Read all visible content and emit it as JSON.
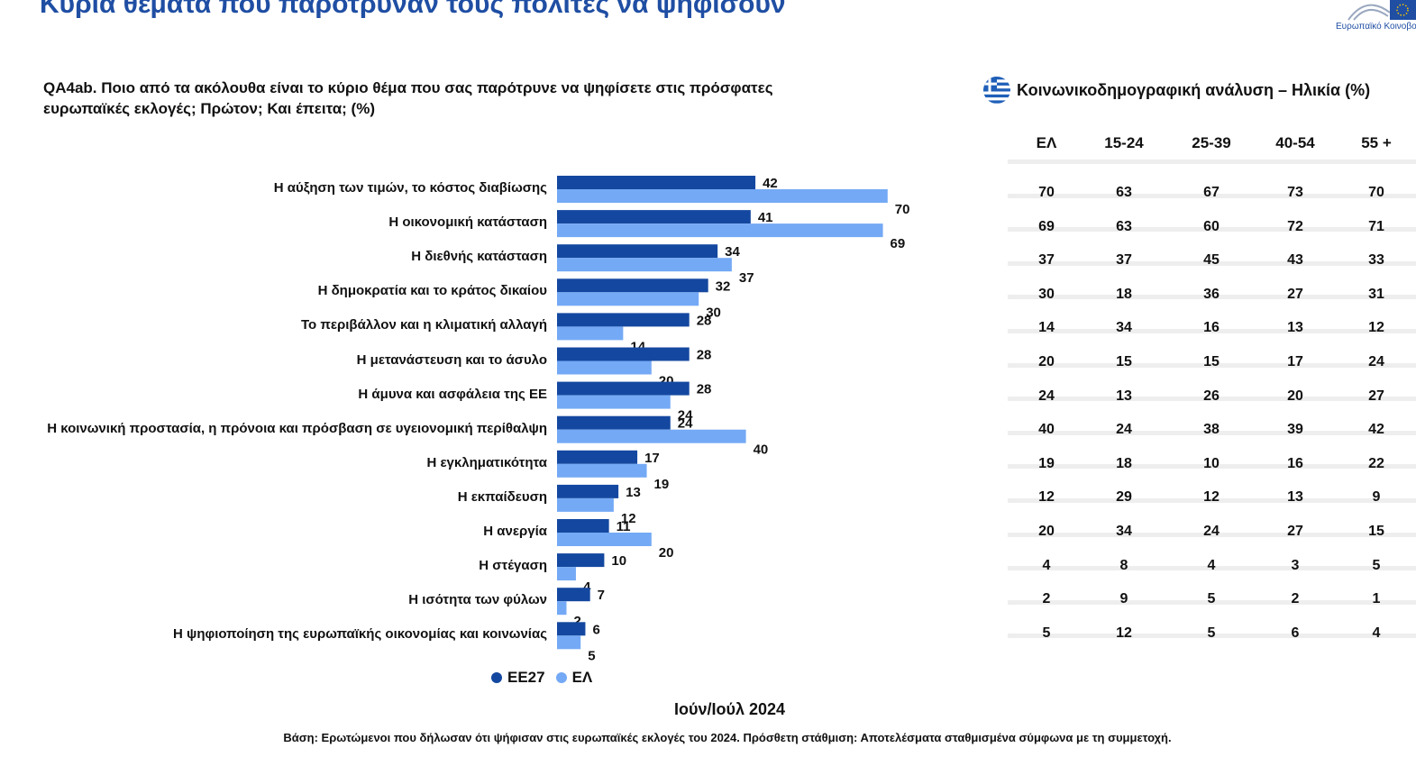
{
  "header": {
    "title": "Κύρια θέματα που παρότρυναν τους πολίτες να ψηφίσουν",
    "logo_text": "Ευρωπαϊκό Κοινοβού"
  },
  "question": {
    "line1": "QA4ab. Ποιο από τα ακόλουθα είναι το κύριο θέμα που σας παρότρυνε να ψηφίσετε στις πρόσφατες",
    "line2": "ευρωπαϊκές εκλογές; Πρώτον; Και έπειτα; (%)"
  },
  "colors": {
    "title": "#1f4ea3",
    "ee27": "#1448a0",
    "el": "#74a9f5",
    "separator": "#eeeeee"
  },
  "chart_data": {
    "type": "bar",
    "orientation": "horizontal",
    "categories": [
      "Η αύξηση των τιμών, το κόστος διαβίωσης",
      "Η οικονομική κατάσταση",
      "Η διεθνής κατάσταση",
      "Η δημοκρατία και το κράτος δικαίου",
      "Το περιβάλλον και η κλιματική αλλαγή",
      "Η μετανάστευση και το άσυλο",
      "Η άμυνα και ασφάλεια της ΕΕ",
      "Η κοινωνική προστασία, η πρόνοια και πρόσβαση σε υγειονομική περίθαλψη",
      "Η εγκληματικότητα",
      "Η εκπαίδευση",
      "Η ανεργία",
      "Η στέγαση",
      "Η ισότητα των φύλων",
      "Η ψηφιοποίηση της ευρωπαϊκής οικονομίας και κοινωνίας"
    ],
    "series": [
      {
        "name": "ΕΕ27",
        "values": [
          42,
          41,
          34,
          32,
          28,
          28,
          28,
          24,
          17,
          13,
          11,
          10,
          7,
          6
        ]
      },
      {
        "name": "ΕΛ",
        "values": [
          70,
          69,
          37,
          30,
          14,
          20,
          24,
          40,
          19,
          12,
          20,
          4,
          2,
          5
        ]
      }
    ],
    "xlim": [
      0,
      70
    ],
    "legend_position": "bottom",
    "grid": false
  },
  "period": "Ιούν/Ιούλ 2024",
  "footnote": "Βάση: Ερωτώμενοι που δήλωσαν ότι ψήφισαν στις ευρωπαϊκές εκλογές του 2024. Πρόσθετη στάθμιση: Αποτελέσματα σταθμισμένα σύμφωνα με τη συμμετοχή.",
  "table": {
    "title": "Κοινωνικοδημογραφική ανάλυση – Ηλικία (%)",
    "flag_icon": "greece-flag-icon",
    "columns": [
      "ΕΛ",
      "15-24",
      "25-39",
      "40-54",
      "55 +"
    ],
    "rows": [
      [
        70,
        63,
        67,
        73,
        70
      ],
      [
        69,
        63,
        60,
        72,
        71
      ],
      [
        37,
        37,
        45,
        43,
        33
      ],
      [
        30,
        18,
        36,
        27,
        31
      ],
      [
        14,
        34,
        16,
        13,
        12
      ],
      [
        20,
        15,
        15,
        17,
        24
      ],
      [
        24,
        13,
        26,
        20,
        27
      ],
      [
        40,
        24,
        38,
        39,
        42
      ],
      [
        19,
        18,
        10,
        16,
        22
      ],
      [
        12,
        29,
        12,
        13,
        9
      ],
      [
        20,
        34,
        24,
        27,
        15
      ],
      [
        4,
        8,
        4,
        3,
        5
      ],
      [
        2,
        9,
        5,
        2,
        1
      ],
      [
        5,
        12,
        5,
        6,
        4
      ]
    ]
  }
}
